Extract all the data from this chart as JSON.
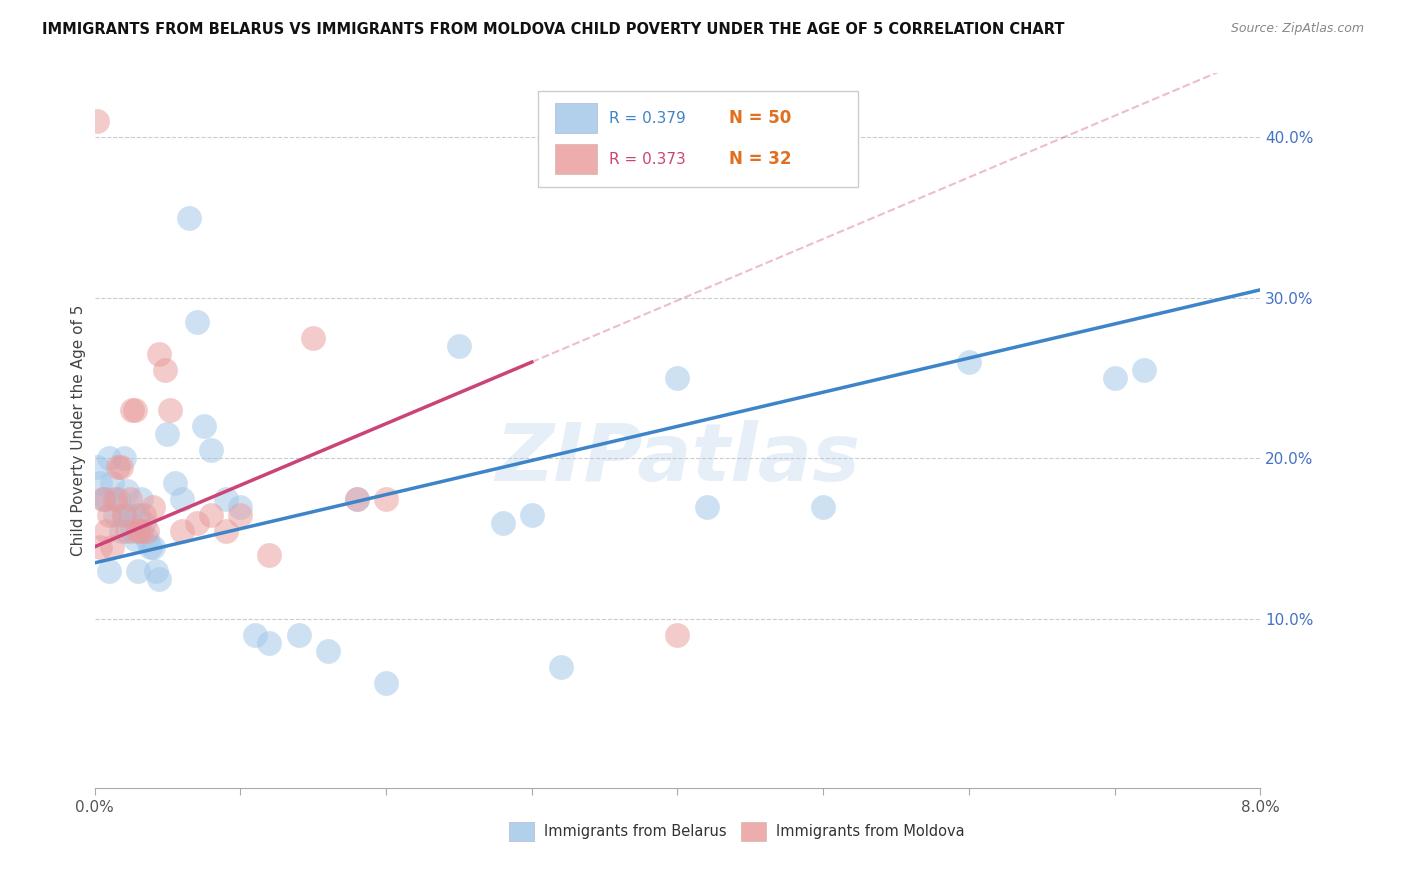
{
  "title": "IMMIGRANTS FROM BELARUS VS IMMIGRANTS FROM MOLDOVA CHILD POVERTY UNDER THE AGE OF 5 CORRELATION CHART",
  "source": "Source: ZipAtlas.com",
  "ylabel": "Child Poverty Under the Age of 5",
  "ylabel_right_ticks": [
    "10.0%",
    "20.0%",
    "30.0%",
    "40.0%"
  ],
  "ylabel_right_vals": [
    0.1,
    0.2,
    0.3,
    0.4
  ],
  "xlim": [
    0.0,
    0.08
  ],
  "ylim": [
    -0.005,
    0.44
  ],
  "color_belarus": "#9fc5e8",
  "color_moldova": "#ea9999",
  "color_line_belarus": "#3d85c8",
  "color_line_moldova": "#cc4477",
  "watermark": "ZIPatlas",
  "belarus_x": [
    0.0002,
    0.0004,
    0.0006,
    0.0008,
    0.001,
    0.001,
    0.0012,
    0.0014,
    0.0016,
    0.0018,
    0.002,
    0.002,
    0.0022,
    0.0024,
    0.0026,
    0.0028,
    0.003,
    0.003,
    0.0032,
    0.0034,
    0.0036,
    0.0038,
    0.004,
    0.0042,
    0.0044,
    0.005,
    0.0055,
    0.006,
    0.0065,
    0.007,
    0.0075,
    0.008,
    0.009,
    0.01,
    0.011,
    0.012,
    0.014,
    0.016,
    0.018,
    0.02,
    0.025,
    0.028,
    0.03,
    0.032,
    0.04,
    0.042,
    0.05,
    0.06,
    0.07,
    0.072
  ],
  "belarus_y": [
    0.195,
    0.185,
    0.175,
    0.175,
    0.2,
    0.13,
    0.185,
    0.165,
    0.175,
    0.155,
    0.2,
    0.165,
    0.18,
    0.165,
    0.155,
    0.15,
    0.165,
    0.13,
    0.175,
    0.16,
    0.15,
    0.145,
    0.145,
    0.13,
    0.125,
    0.215,
    0.185,
    0.175,
    0.35,
    0.285,
    0.22,
    0.205,
    0.175,
    0.17,
    0.09,
    0.085,
    0.09,
    0.08,
    0.175,
    0.06,
    0.27,
    0.16,
    0.165,
    0.07,
    0.25,
    0.17,
    0.17,
    0.26,
    0.25,
    0.255
  ],
  "moldova_x": [
    0.0002,
    0.0004,
    0.0006,
    0.0008,
    0.001,
    0.0012,
    0.0014,
    0.0016,
    0.0018,
    0.002,
    0.0022,
    0.0024,
    0.0026,
    0.0028,
    0.003,
    0.0032,
    0.0034,
    0.0036,
    0.004,
    0.0044,
    0.0048,
    0.0052,
    0.006,
    0.007,
    0.008,
    0.009,
    0.01,
    0.012,
    0.015,
    0.018,
    0.02,
    0.04
  ],
  "moldova_y": [
    0.41,
    0.145,
    0.175,
    0.155,
    0.165,
    0.145,
    0.175,
    0.195,
    0.195,
    0.165,
    0.155,
    0.175,
    0.23,
    0.23,
    0.155,
    0.155,
    0.165,
    0.155,
    0.17,
    0.265,
    0.255,
    0.23,
    0.155,
    0.16,
    0.165,
    0.155,
    0.165,
    0.14,
    0.275,
    0.175,
    0.175,
    0.09
  ],
  "moldova_line_xmax": 0.03,
  "legend_r1_color": "#3d85c8",
  "legend_n1_color": "#e07020",
  "legend_r2_color": "#cc4477",
  "legend_n2_color": "#e07020"
}
